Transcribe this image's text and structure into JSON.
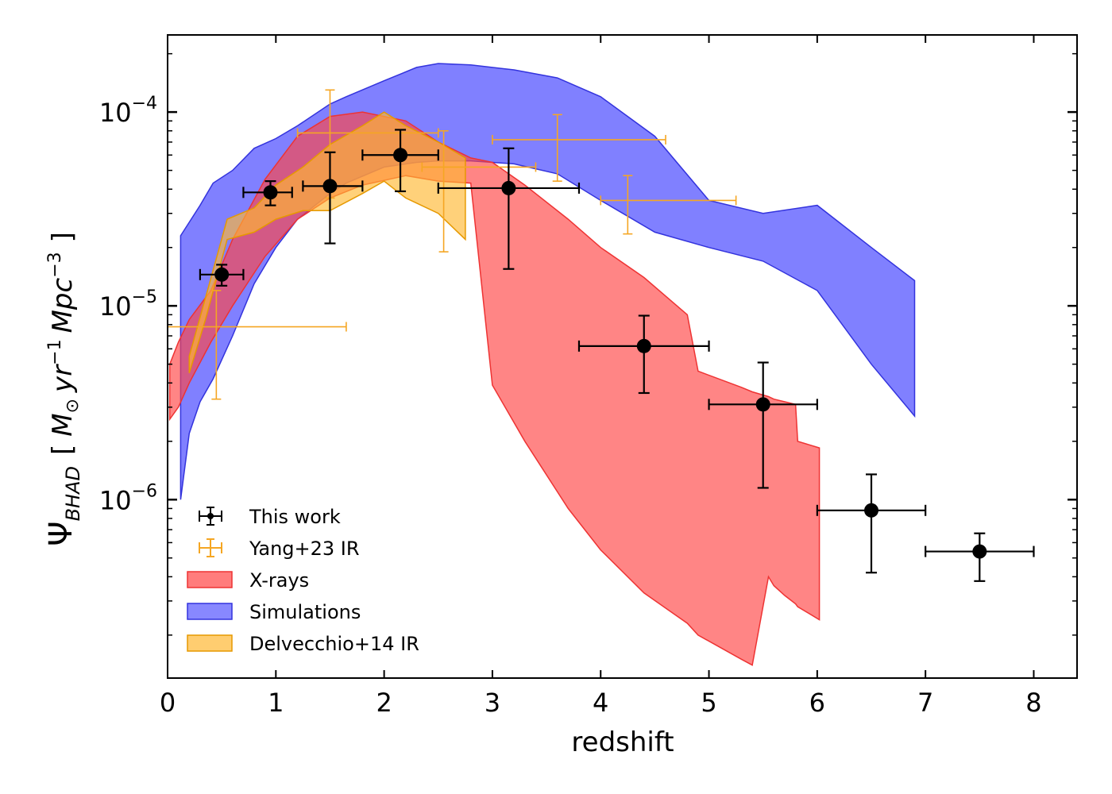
{
  "chart_data": {
    "type": "scatter",
    "title": "",
    "xlabel": "redshift",
    "ylabel": {
      "symbol": "Ψ",
      "subscript": "BHAD",
      "open_bracket": "[",
      "units_m": "M",
      "units_sun": "⊙",
      "units_yr": "yr",
      "units_yr_exp": "−1",
      "units_mpc": "Mpc",
      "units_mpc_exp": "−3",
      "close_bracket": "]"
    },
    "xlim": [
      0,
      8.4
    ],
    "ylim": [
      1.2e-07,
      0.00025
    ],
    "yscale": "log",
    "xticks": [
      0,
      1,
      2,
      3,
      4,
      5,
      6,
      7,
      8
    ],
    "xtick_labels": [
      "0",
      "1",
      "2",
      "3",
      "4",
      "5",
      "6",
      "7",
      "8"
    ],
    "yticks": [
      {
        "value": 1e-06,
        "base": "10",
        "exp": "−6"
      },
      {
        "value": 1e-05,
        "base": "10",
        "exp": "−5"
      },
      {
        "value": 0.0001,
        "base": "10",
        "exp": "−4"
      }
    ],
    "legend_position": "lower-left",
    "series": [
      {
        "name": "Simulations",
        "kind": "band",
        "color": "#5555ff",
        "edge": "#3333dd",
        "opacity": 0.75,
        "x": [
          0.12,
          0.2,
          0.3,
          0.42,
          0.6,
          0.8,
          1.0,
          1.2,
          1.5,
          1.65,
          2.0,
          2.3,
          2.5,
          2.8,
          3.2,
          3.6,
          4.0,
          4.5,
          5.0,
          5.5,
          6.0,
          6.5,
          6.9
        ],
        "upper": [
          2.3e-05,
          2.7e-05,
          3.3e-05,
          4.3e-05,
          5e-05,
          6.5e-05,
          7.3e-05,
          8.5e-05,
          0.00011,
          0.00012,
          0.000145,
          0.00017,
          0.000178,
          0.000175,
          0.000165,
          0.00015,
          0.00012,
          7.5e-05,
          3.5e-05,
          3e-05,
          3.3e-05,
          2e-05,
          1.35e-05
        ],
        "lower": [
          1e-06,
          2.2e-06,
          3.2e-06,
          4.2e-06,
          7e-06,
          1.3e-05,
          2e-05,
          2.8e-05,
          3.8e-05,
          4.3e-05,
          5.2e-05,
          5.5e-05,
          5.6e-05,
          5.6e-05,
          5.4e-05,
          4.8e-05,
          3.5e-05,
          2.4e-05,
          2e-05,
          1.7e-05,
          1.2e-05,
          5e-06,
          2.7e-06
        ]
      },
      {
        "name": "X-rays",
        "kind": "band",
        "color": "#ff4444",
        "edge": "#ee3333",
        "opacity": 0.65,
        "x": [
          0.02,
          0.1,
          0.2,
          0.4,
          0.6,
          0.9,
          1.2,
          1.5,
          1.8,
          2.2,
          2.5,
          2.8,
          3.0,
          3.3,
          3.7,
          4.0,
          4.4,
          4.8,
          4.9,
          5.3,
          5.4,
          5.55,
          5.6,
          5.7,
          5.8,
          5.82,
          6.02
        ],
        "upper": [
          5e-06,
          6.5e-06,
          8.5e-06,
          1.2e-05,
          2.2e-05,
          4.5e-05,
          7.5e-05,
          9.5e-05,
          0.0001,
          9e-05,
          7e-05,
          5.8e-05,
          5.5e-05,
          4.2e-05,
          2.8e-05,
          2e-05,
          1.4e-05,
          9e-06,
          4.6e-06,
          3.8e-06,
          3.6e-06,
          3.4e-06,
          3.3e-06,
          3.2e-06,
          3.1e-06,
          2e-06,
          1.85e-06
        ],
        "lower": [
          2.6e-06,
          3e-06,
          4e-06,
          6.5e-06,
          1e-05,
          1.8e-05,
          2.8e-05,
          3.6e-05,
          4.2e-05,
          4.7e-05,
          4.4e-05,
          4.3e-05,
          3.9e-06,
          2e-06,
          9e-07,
          5.5e-07,
          3.3e-07,
          2.3e-07,
          2e-07,
          1.5e-07,
          1.4e-07,
          4e-07,
          3.6e-07,
          3.2e-07,
          2.9e-07,
          2.8e-07,
          2.4e-07
        ]
      },
      {
        "name": "Delvecchio+14 IR",
        "kind": "band",
        "color": "#ffb833",
        "edge": "#e69900",
        "opacity": 0.65,
        "x": [
          0.2,
          0.35,
          0.55,
          0.8,
          1.0,
          1.25,
          1.5,
          1.8,
          2.0,
          2.2,
          2.5,
          2.75
        ],
        "upper": [
          5.5e-06,
          1.1e-05,
          2.8e-05,
          3.2e-05,
          4.2e-05,
          5.2e-05,
          6.8e-05,
          8.5e-05,
          0.0001,
          8.5e-05,
          7e-05,
          5.8e-05
        ],
        "lower": [
          4.5e-06,
          8.5e-06,
          2.2e-05,
          2.4e-05,
          2.8e-05,
          3.1e-05,
          3.1e-05,
          3.8e-05,
          4.4e-05,
          3.6e-05,
          3e-05,
          2.2e-05
        ]
      },
      {
        "name": "Yang+23 IR",
        "kind": "errorbar",
        "color": "#f5a623",
        "points": [
          {
            "x": 0.45,
            "y": 7.8e-06,
            "xerr": [
              0.45,
              1.2
            ],
            "yerr": [
              3.3e-06,
              1.2e-05
            ]
          },
          {
            "x": 1.5,
            "y": 7.8e-05,
            "xerr": [
              0.3,
              1.0
            ],
            "yerr": [
              3.6e-05,
              0.00013
            ]
          },
          {
            "x": 2.55,
            "y": 5.2e-05,
            "xerr": [
              0.2,
              0.85
            ],
            "yerr": [
              1.9e-05,
              8e-05
            ]
          },
          {
            "x": 3.6,
            "y": 7.2e-05,
            "xerr": [
              0.6,
              1.0
            ],
            "yerr": [
              4.4e-05,
              9.7e-05
            ]
          },
          {
            "x": 4.25,
            "y": 3.5e-05,
            "xerr": [
              0.25,
              1.0
            ],
            "yerr": [
              2.35e-05,
              4.7e-05
            ]
          }
        ]
      },
      {
        "name": "This work",
        "kind": "errorbar",
        "color": "#000000",
        "points": [
          {
            "x": 0.5,
            "y": 1.45e-05,
            "xerr": [
              0.2,
              0.2
            ],
            "yerr": [
              1.27e-05,
              1.63e-05
            ]
          },
          {
            "x": 0.95,
            "y": 3.85e-05,
            "xerr": [
              0.25,
              0.2
            ],
            "yerr": [
              3.3e-05,
              4.4e-05
            ]
          },
          {
            "x": 1.5,
            "y": 4.15e-05,
            "xerr": [
              0.25,
              0.3
            ],
            "yerr": [
              2.1e-05,
              6.2e-05
            ]
          },
          {
            "x": 2.15,
            "y": 6e-05,
            "xerr": [
              0.35,
              0.35
            ],
            "yerr": [
              3.9e-05,
              8.1e-05
            ]
          },
          {
            "x": 3.15,
            "y": 4.05e-05,
            "xerr": [
              0.65,
              0.65
            ],
            "yerr": [
              1.55e-05,
              6.5e-05
            ]
          },
          {
            "x": 4.4,
            "y": 6.2e-06,
            "xerr": [
              0.6,
              0.6
            ],
            "yerr": [
              3.55e-06,
              8.9e-06
            ]
          },
          {
            "x": 5.5,
            "y": 3.1e-06,
            "xerr": [
              0.5,
              0.5
            ],
            "yerr": [
              1.15e-06,
              5.1e-06
            ]
          },
          {
            "x": 6.5,
            "y": 8.8e-07,
            "xerr": [
              0.5,
              0.5
            ],
            "yerr": [
              4.2e-07,
              1.35e-06
            ]
          },
          {
            "x": 7.5,
            "y": 5.4e-07,
            "xerr": [
              0.5,
              0.5
            ],
            "yerr": [
              3.8e-07,
              6.7e-07
            ]
          }
        ]
      }
    ],
    "legend": [
      {
        "label": "This work",
        "kind": "errorbar",
        "color": "#000000"
      },
      {
        "label": "Yang+23 IR",
        "kind": "errorbar",
        "color": "#f5a623"
      },
      {
        "label": "X-rays",
        "kind": "patch",
        "color": "#ff4444",
        "edge": "#ee3333"
      },
      {
        "label": "Simulations",
        "kind": "patch",
        "color": "#5555ff",
        "edge": "#3333dd"
      },
      {
        "label": "Delvecchio+14 IR",
        "kind": "patch",
        "color": "#ffb833",
        "edge": "#e69900"
      }
    ]
  }
}
